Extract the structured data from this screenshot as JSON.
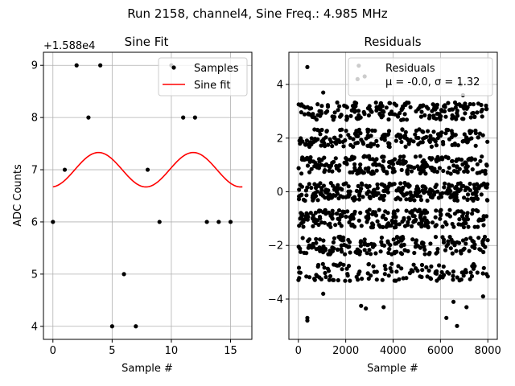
{
  "figure_title": "Run 2158, channel4, Sine Freq.: 4.985 MHz",
  "chart_data": [
    {
      "type": "scatter+line",
      "title": "Sine Fit",
      "xlabel": "Sample #",
      "ylabel": "ADC Counts",
      "offset_label": "+1.588e4",
      "xlim": [
        -0.8,
        16.8
      ],
      "ylim": [
        3.75,
        9.25
      ],
      "xticks": [
        0,
        5,
        10,
        15
      ],
      "yticks": [
        4,
        5,
        6,
        7,
        8,
        9
      ],
      "grid": true,
      "legend_position": "top-right",
      "series": [
        {
          "name": "Samples",
          "kind": "points",
          "color": "#000000",
          "x": [
            0,
            1,
            2,
            3,
            4,
            5,
            6,
            7,
            8,
            9,
            10,
            11,
            12,
            13,
            14,
            15
          ],
          "y": [
            6,
            7,
            9,
            8,
            9,
            4,
            5,
            4,
            7,
            6,
            9,
            8,
            8,
            6,
            6,
            6
          ]
        },
        {
          "name": "Sine fit",
          "kind": "line",
          "color": "#ff0000",
          "model": {
            "mean": 7.0,
            "amplitude": 0.33,
            "period": 8.0,
            "phase_peak_x": 3.85,
            "x_start": 0,
            "x_end": 16
          }
        }
      ]
    },
    {
      "type": "scatter",
      "title": "Residuals",
      "xlabel": "Sample #",
      "ylabel": "",
      "xlim": [
        -400,
        8400
      ],
      "ylim": [
        -5.5,
        5.2
      ],
      "xticks": [
        0,
        2000,
        4000,
        6000,
        8000
      ],
      "yticks": [
        -4,
        -2,
        0,
        2,
        4
      ],
      "grid": true,
      "legend_position": "top-right",
      "legend": {
        "label": "Residuals",
        "stats": "μ = -0.0, σ = 1.32"
      },
      "series": [
        {
          "name": "Residuals",
          "kind": "points",
          "color": "#000000",
          "n_points": 8000,
          "bands": [
            -3,
            -2,
            -1,
            0,
            1,
            2,
            3
          ],
          "band_halfwidth": 0.33,
          "outliers": [
            {
              "x": 380,
              "y": 4.65
            },
            {
              "x": 380,
              "y": -4.7
            },
            {
              "x": 380,
              "y": -4.8
            },
            {
              "x": 2550,
              "y": 4.7
            },
            {
              "x": 2800,
              "y": 4.3
            },
            {
              "x": 2500,
              "y": 4.2
            },
            {
              "x": 2850,
              "y": -4.35
            },
            {
              "x": 2650,
              "y": -4.25
            },
            {
              "x": 3600,
              "y": -4.3
            },
            {
              "x": 6700,
              "y": -5.0
            },
            {
              "x": 6250,
              "y": -4.7
            },
            {
              "x": 7100,
              "y": -4.3
            },
            {
              "x": 7800,
              "y": -3.9
            },
            {
              "x": 1050,
              "y": -3.8
            },
            {
              "x": 6550,
              "y": -4.1
            },
            {
              "x": 1050,
              "y": 3.7
            },
            {
              "x": 6850,
              "y": 4.0
            },
            {
              "x": 6950,
              "y": 3.6
            }
          ]
        }
      ]
    }
  ]
}
